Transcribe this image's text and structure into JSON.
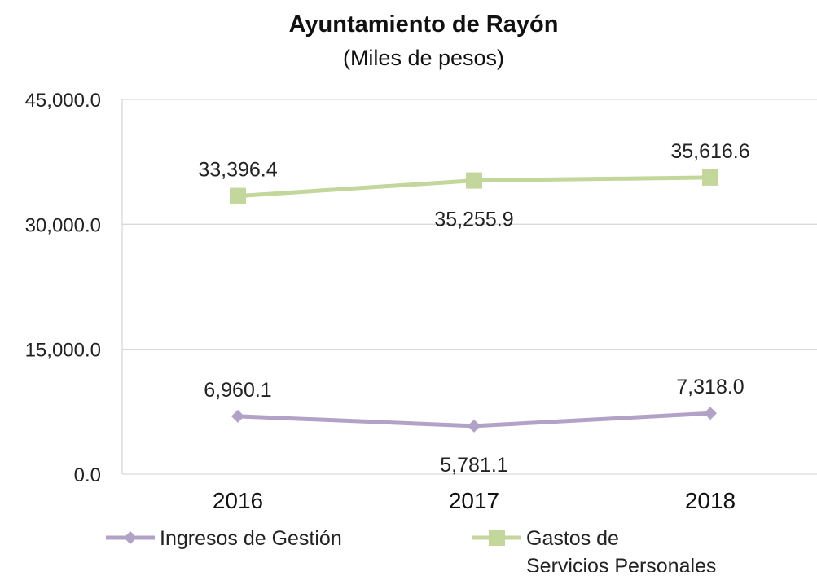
{
  "chart_data": {
    "type": "line",
    "title": "Ayuntamiento de Rayón",
    "subtitle": "(Miles de pesos)",
    "categories": [
      "2016",
      "2017",
      "2018"
    ],
    "ylim": [
      0,
      45000
    ],
    "yticks": [
      {
        "value": 0,
        "label": "0.0"
      },
      {
        "value": 15000,
        "label": "15,000.0"
      },
      {
        "value": 30000,
        "label": "30,000.0"
      },
      {
        "value": 45000,
        "label": "45,000.0"
      }
    ],
    "grid": true,
    "legend_position": "bottom",
    "series": [
      {
        "name": "Ingresos de Gestión",
        "legend_lines": [
          "Ingresos de Gestión"
        ],
        "color": "#b3a2c7",
        "marker": "diamond",
        "values": [
          6960.1,
          5781.1,
          7318.0
        ],
        "labels": [
          "6,960.1",
          "5,781.1",
          "7,318.0"
        ],
        "label_positions": [
          "above",
          "below",
          "above"
        ]
      },
      {
        "name": "Gastos de Servicios Personales",
        "legend_lines": [
          "Gastos de",
          "Servicios Personales"
        ],
        "color": "#c3d69b",
        "marker": "square",
        "values": [
          33396.4,
          35255.9,
          35616.6
        ],
        "labels": [
          "33,396.4",
          "35,255.9",
          "35,616.6"
        ],
        "label_positions": [
          "above",
          "below",
          "above"
        ]
      }
    ]
  }
}
